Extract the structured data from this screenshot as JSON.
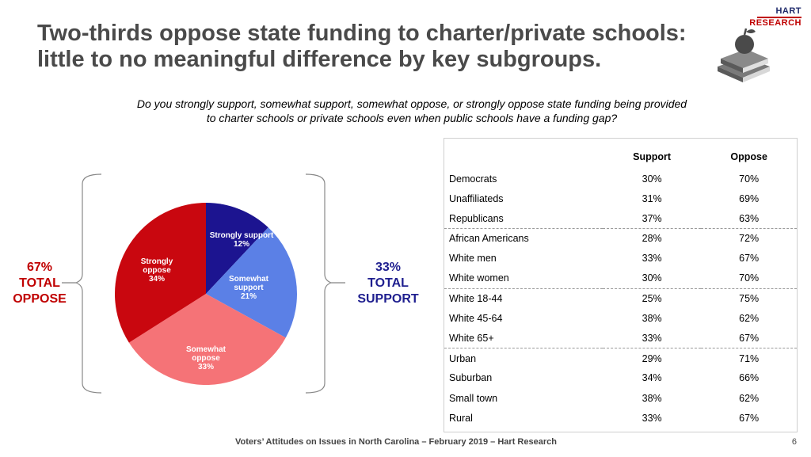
{
  "logo": {
    "text_a": "HART",
    "text_b": "RESEARCH"
  },
  "title": {
    "line1": "Two-thirds oppose state funding to charter/private schools:",
    "line2": "little to no meaningful difference by key subgroups."
  },
  "question": {
    "line1": "Do you strongly support, somewhat support, somewhat oppose, or strongly oppose state funding being provided",
    "line2": "to charter schools or private schools even when public schools have a funding gap?"
  },
  "total_oppose": {
    "pct": "67%",
    "line1": "TOTAL",
    "line2": "OPPOSE"
  },
  "total_support": {
    "pct": "33%",
    "line1": "TOTAL",
    "line2": "SUPPORT"
  },
  "chart_data": {
    "type": "pie",
    "slices": [
      {
        "label": "Strongly support",
        "value": 12,
        "display": "12%",
        "color": "#1c1490"
      },
      {
        "label": "Somewhat support",
        "value": 21,
        "display": "21%",
        "color": "#5b80e6"
      },
      {
        "label": "Somewhat oppose",
        "value": 33,
        "display": "33%",
        "color": "#f57377"
      },
      {
        "label": "Strongly oppose",
        "value": 34,
        "display": "34%",
        "color": "#c9070f"
      }
    ]
  },
  "table": {
    "headers": [
      "",
      "Support",
      "Oppose"
    ],
    "rows": [
      {
        "group": "Democrats",
        "support": "30%",
        "oppose": "70%"
      },
      {
        "group": "Unaffiliateds",
        "support": "31%",
        "oppose": "69%"
      },
      {
        "group": "Republicans",
        "support": "37%",
        "oppose": "63%"
      },
      {
        "group": "African Americans",
        "support": "28%",
        "oppose": "72%"
      },
      {
        "group": "White men",
        "support": "33%",
        "oppose": "67%"
      },
      {
        "group": "White women",
        "support": "30%",
        "oppose": "70%"
      },
      {
        "group": "White 18-44",
        "support": "25%",
        "oppose": "75%"
      },
      {
        "group": "White 45-64",
        "support": "38%",
        "oppose": "62%"
      },
      {
        "group": "White 65+",
        "support": "33%",
        "oppose": "67%"
      },
      {
        "group": "Urban",
        "support": "29%",
        "oppose": "71%"
      },
      {
        "group": "Suburban",
        "support": "34%",
        "oppose": "66%"
      },
      {
        "group": "Small town",
        "support": "38%",
        "oppose": "62%"
      },
      {
        "group": "Rural",
        "support": "33%",
        "oppose": "67%"
      }
    ]
  },
  "footer": "Voters’ Attitudes on Issues in North Carolina – February 2019 – Hart Research",
  "page_number": "6"
}
